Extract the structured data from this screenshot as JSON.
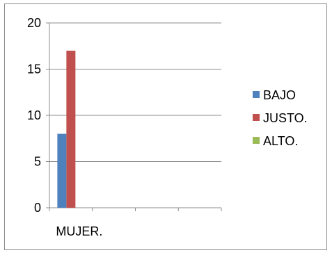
{
  "chart_data": {
    "type": "bar",
    "categories": [
      "MUJER."
    ],
    "series": [
      {
        "name": "BAJO",
        "values": [
          8
        ],
        "color": "#4f81bd"
      },
      {
        "name": "JUSTO.",
        "values": [
          17
        ],
        "color": "#c0504d"
      },
      {
        "name": "ALTO.",
        "values": [
          0
        ],
        "color": "#9bbb59"
      }
    ],
    "ylim": [
      0,
      20
    ],
    "yticks": [
      0,
      5,
      10,
      15,
      20
    ],
    "grid": true,
    "legend_position": "right",
    "title": "",
    "xlabel": "",
    "ylabel": ""
  }
}
